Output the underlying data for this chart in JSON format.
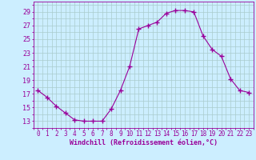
{
  "x": [
    0,
    1,
    2,
    3,
    4,
    5,
    6,
    7,
    8,
    9,
    10,
    11,
    12,
    13,
    14,
    15,
    16,
    17,
    18,
    19,
    20,
    21,
    22,
    23
  ],
  "y": [
    17.5,
    16.5,
    15.2,
    14.2,
    13.2,
    13.0,
    13.0,
    13.0,
    14.8,
    17.5,
    21.0,
    26.5,
    27.0,
    27.5,
    28.8,
    29.2,
    29.2,
    29.0,
    25.5,
    23.5,
    22.5,
    19.2,
    17.5,
    17.2
  ],
  "line_color": "#990099",
  "marker": "+",
  "marker_size": 5,
  "background_color": "#cceeff",
  "grid_color": "#aacccc",
  "ylabel_ticks": [
    13,
    15,
    17,
    19,
    21,
    23,
    25,
    27,
    29
  ],
  "xlabel": "Windchill (Refroidissement éolien,°C)",
  "ylim": [
    12.0,
    30.5
  ],
  "xlim": [
    -0.5,
    23.5
  ],
  "tick_color": "#990099",
  "label_color": "#990099",
  "tick_fontsize": 5.5,
  "xlabel_fontsize": 6.0
}
